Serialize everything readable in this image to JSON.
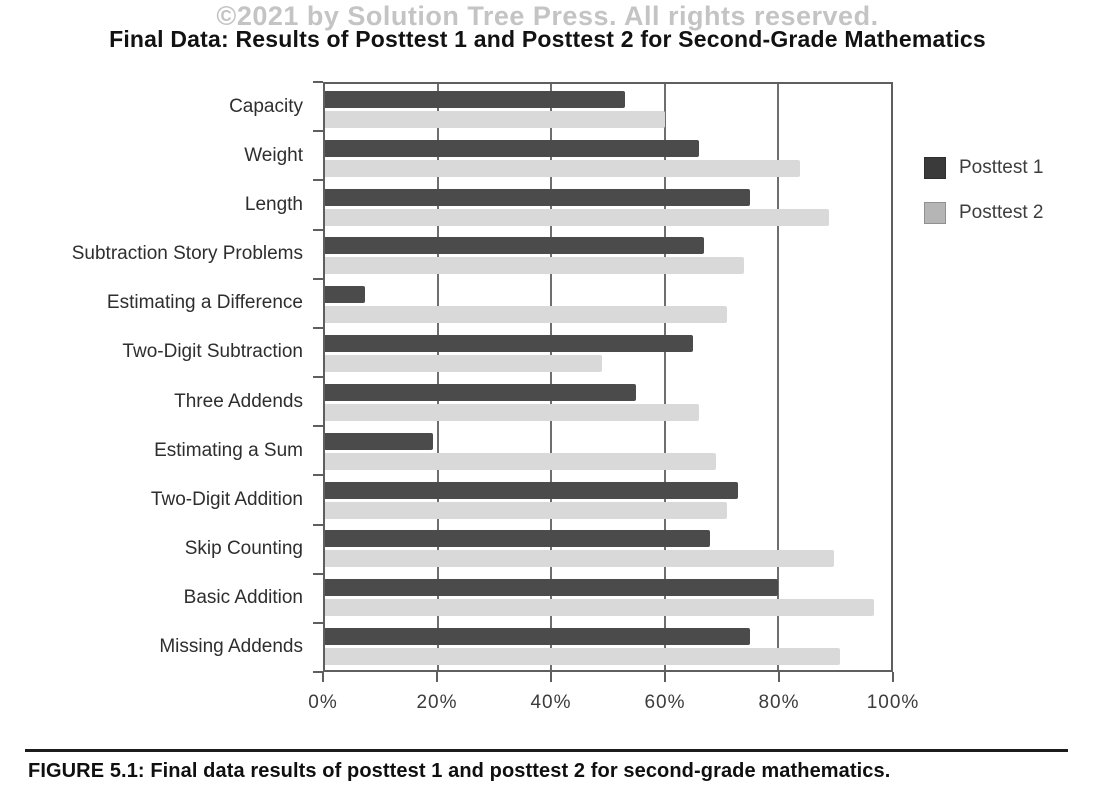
{
  "watermark": "©2021 by Solution Tree Press. All rights reserved.",
  "title": "Final Data: Results of Posttest 1 and Posttest 2 for Second-Grade Mathematics",
  "caption": "FIGURE 5.1: Final data results of posttest 1 and posttest 2 for second-grade mathematics.",
  "colors": {
    "bar_dark": "#4b4b4b",
    "bar_light": "#d9d9d9",
    "legend_dark": "#3a3a3a",
    "legend_light": "#b5b5b5",
    "axis": "#5f5f5f",
    "grid": "#6e6e6e"
  },
  "legend": [
    {
      "label": "Posttest 1",
      "color": "#3a3a3a"
    },
    {
      "label": "Posttest 2",
      "color": "#b5b5b5"
    }
  ],
  "chart_data": {
    "type": "bar",
    "orientation": "horizontal",
    "title": "Final Data: Results of Posttest 1 and Posttest 2 for Second-Grade Mathematics",
    "categories": [
      "Capacity",
      "Weight",
      "Length",
      "Subtraction Story Problems",
      "Estimating a Difference",
      "Two-Digit Subtraction",
      "Three Addends",
      "Estimating a Sum",
      "Two-Digit Addition",
      "Skip Counting",
      "Basic Addition",
      "Missing Addends"
    ],
    "series": [
      {
        "name": "Posttest 1",
        "values": [
          53,
          66,
          75,
          67,
          7,
          65,
          55,
          19,
          73,
          68,
          80,
          75
        ]
      },
      {
        "name": "Posttest 2",
        "values": [
          60,
          84,
          89,
          74,
          71,
          49,
          66,
          69,
          71,
          90,
          97,
          91
        ]
      }
    ],
    "x_tick_labels": [
      "0%",
      "20%",
      "40%",
      "60%",
      "80%",
      "100%"
    ],
    "xlim": [
      0,
      100
    ],
    "grid": true,
    "legend_position": "right"
  }
}
